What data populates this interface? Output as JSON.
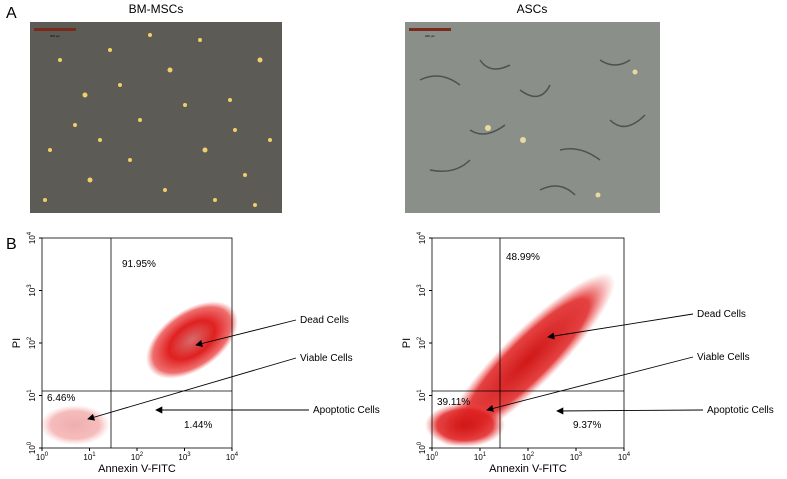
{
  "panel_a": {
    "label": "A",
    "images": [
      {
        "title": "BM-MSCs",
        "scale_bar": "200 μm"
      },
      {
        "title": "ASCs",
        "scale_bar": "200 μm"
      }
    ]
  },
  "panel_b": {
    "label": "B",
    "axis_ticks": [
      {
        "base": "10",
        "exp": "0"
      },
      {
        "base": "10",
        "exp": "1"
      },
      {
        "base": "10",
        "exp": "2"
      },
      {
        "base": "10",
        "exp": "3"
      },
      {
        "base": "10",
        "exp": "4"
      }
    ],
    "plots": [
      {
        "y_label": "PI",
        "x_label": "Annexin V-FITC",
        "quadrants": {
          "upper_right": "91.95%",
          "lower_left": "6.46%",
          "lower_right": "1.44%"
        },
        "annotations": [
          "Dead Cells",
          "Viable Cells",
          "Apoptotic Cells"
        ]
      },
      {
        "y_label": "PI",
        "x_label": "Annexin V-FITC",
        "quadrants": {
          "upper_right": "48.99%",
          "lower_left": "39.11%",
          "lower_right": "9.37%"
        },
        "annotations": [
          "Dead Cells",
          "Viable Cells",
          "Apoptotic Cells"
        ]
      }
    ]
  }
}
